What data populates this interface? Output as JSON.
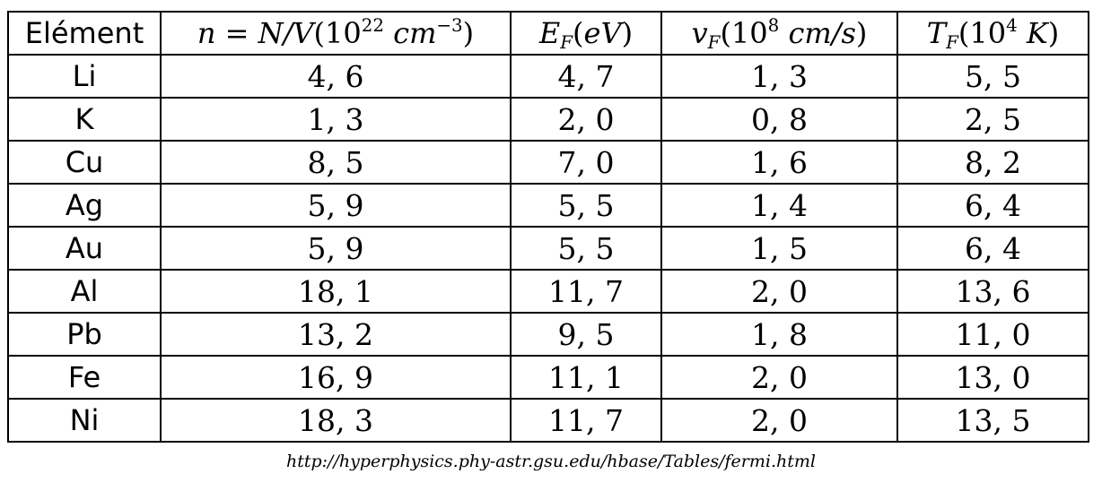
{
  "table": {
    "headers": {
      "element": "Elément",
      "n": {
        "lhs": "n",
        "eq": " = ",
        "nv": "N/V",
        "open": "(",
        "base": "10",
        "exp": "22",
        "unit": " cm",
        "unit_exp": "−3",
        "close": ")"
      },
      "ef": {
        "sym": "E",
        "sub": "F",
        "open": "(",
        "unit": "eV",
        "close": ")"
      },
      "vf": {
        "sym": "v",
        "sub": "F",
        "open": "(",
        "base": "10",
        "exp": "8",
        "unit": " cm/s",
        "close": ")"
      },
      "tf": {
        "sym": "T",
        "sub": "F",
        "open": "(",
        "base": "10",
        "exp": "4",
        "unit": " K",
        "close": ")"
      }
    },
    "rows": [
      {
        "element": "Li",
        "n": "4, 6",
        "ef": "4, 7",
        "vf": "1, 3",
        "tf": "5, 5"
      },
      {
        "element": "K",
        "n": "1, 3",
        "ef": "2, 0",
        "vf": "0, 8",
        "tf": "2, 5"
      },
      {
        "element": "Cu",
        "n": "8, 5",
        "ef": "7, 0",
        "vf": "1, 6",
        "tf": "8, 2"
      },
      {
        "element": "Ag",
        "n": "5, 9",
        "ef": "5, 5",
        "vf": "1, 4",
        "tf": "6, 4"
      },
      {
        "element": "Au",
        "n": "5, 9",
        "ef": "5, 5",
        "vf": "1, 5",
        "tf": "6, 4"
      },
      {
        "element": "Al",
        "n": "18, 1",
        "ef": "11, 7",
        "vf": "2, 0",
        "tf": "13, 6"
      },
      {
        "element": "Pb",
        "n": "13, 2",
        "ef": "9, 5",
        "vf": "1, 8",
        "tf": "11, 0"
      },
      {
        "element": "Fe",
        "n": "16, 9",
        "ef": "11, 1",
        "vf": "2, 0",
        "tf": "13, 0"
      },
      {
        "element": "Ni",
        "n": "18, 3",
        "ef": "11, 7",
        "vf": "2, 0",
        "tf": "13, 5"
      }
    ]
  },
  "source": "http://hyperphysics.phy-astr.gsu.edu/hbase/Tables/fermi.html"
}
